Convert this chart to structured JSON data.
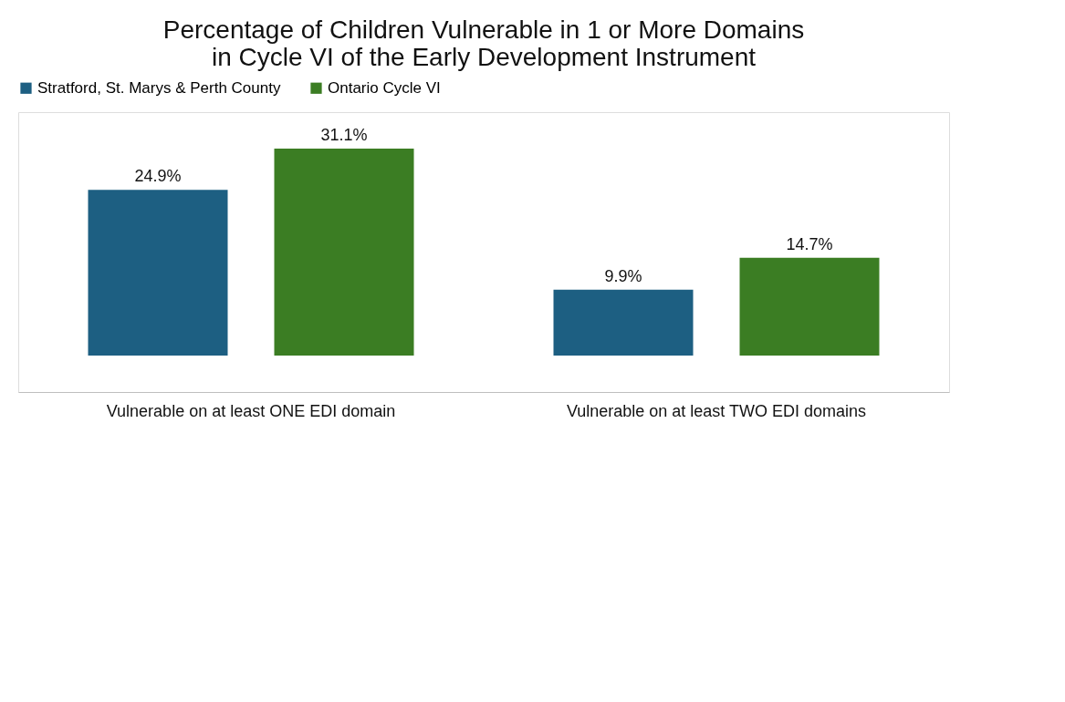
{
  "chart_data": {
    "type": "bar",
    "title": [
      "Percentage of Children Vulnerable in 1 or More Domains",
      "in Cycle VI of the Early Development Instrument"
    ],
    "categories": [
      "Vulnerable on at least ONE EDI domain",
      "Vulnerable on at least TWO EDI domains"
    ],
    "series": [
      {
        "name": "Stratford, St. Marys & Perth County",
        "color": "#1d5f82",
        "values": [
          24.9,
          9.9
        ],
        "value_labels": [
          "24.9%",
          "9.9%"
        ]
      },
      {
        "name": "Ontario Cycle VI",
        "color": "#3b7d23",
        "values": [
          31.1,
          14.7
        ],
        "value_labels": [
          "31.1%",
          "14.7%"
        ]
      }
    ],
    "legend": "top"
  }
}
